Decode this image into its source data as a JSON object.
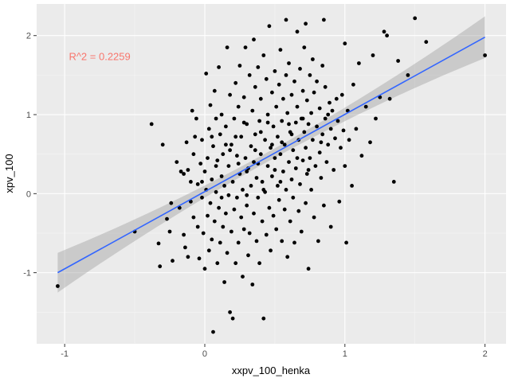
{
  "chart_data": {
    "type": "scatter",
    "title": "",
    "xlabel": "xxpv_100_henka",
    "ylabel": "xpv_100",
    "xlim": [
      -1.2,
      2.15
    ],
    "ylim": [
      -1.9,
      2.4
    ],
    "x_ticks": [
      -1,
      0,
      1,
      2
    ],
    "y_ticks": [
      -1,
      0,
      1,
      2
    ],
    "x_tick_labels": [
      "-1",
      "0",
      "1",
      "2"
    ],
    "y_tick_labels": [
      "-1",
      "0",
      "1",
      "2"
    ],
    "grid": true,
    "legend": "none",
    "annotation": {
      "text": "R^2 = 0.2259",
      "x": -0.97,
      "y": 1.73,
      "color": "#f8766d"
    },
    "fit_line": {
      "x": [
        -1.05,
        2.0
      ],
      "y": [
        -1.0,
        1.98
      ],
      "color": "#3366ff",
      "band_color": "#999999"
    },
    "point_color": "#000000",
    "panel_color": "#ebebeb",
    "series": [
      {
        "points": [
          [
            -1.05,
            -1.17
          ],
          [
            -0.5,
            -0.48
          ],
          [
            -0.38,
            0.88
          ],
          [
            -0.33,
            -0.63
          ],
          [
            -0.32,
            -0.92
          ],
          [
            -0.3,
            0.62
          ],
          [
            -0.27,
            -0.32
          ],
          [
            -0.25,
            -0.48
          ],
          [
            -0.24,
            -0.12
          ],
          [
            -0.23,
            -0.85
          ],
          [
            -0.2,
            0.4
          ],
          [
            -0.18,
            -0.18
          ],
          [
            -0.17,
            0.28
          ],
          [
            -0.15,
            -0.52
          ],
          [
            -0.15,
            0.25
          ],
          [
            -0.14,
            -0.68
          ],
          [
            -0.13,
            0.65
          ],
          [
            -0.12,
            0.3
          ],
          [
            -0.12,
            -0.8
          ],
          [
            -0.1,
            -0.1
          ],
          [
            -0.1,
            0.15
          ],
          [
            -0.09,
            1.05
          ],
          [
            -0.08,
            0.5
          ],
          [
            -0.08,
            -0.3
          ],
          [
            -0.07,
            0.72
          ],
          [
            -0.06,
            0.95
          ],
          [
            -0.05,
            0.12
          ],
          [
            -0.05,
            -0.42
          ],
          [
            -0.04,
            -0.82
          ],
          [
            -0.03,
            0.38
          ],
          [
            -0.02,
            -0.05
          ],
          [
            -0.02,
            0.68
          ],
          [
            -0.01,
            -0.5
          ],
          [
            0.0,
            0.28
          ],
          [
            0.0,
            -0.95
          ],
          [
            0.01,
            0.05
          ],
          [
            0.01,
            1.52
          ],
          [
            0.02,
            0.45
          ],
          [
            0.02,
            -0.28
          ],
          [
            0.03,
            -0.72
          ],
          [
            0.03,
            0.82
          ],
          [
            0.04,
            1.12
          ],
          [
            0.04,
            -0.12
          ],
          [
            0.05,
            0.18
          ],
          [
            0.05,
            -0.58
          ],
          [
            0.06,
            0.6
          ],
          [
            0.06,
            -1.75
          ],
          [
            0.07,
            1.3
          ],
          [
            0.07,
            -0.35
          ],
          [
            0.08,
            0.95
          ],
          [
            0.08,
            0.02
          ],
          [
            0.09,
            -0.88
          ],
          [
            0.09,
            0.42
          ],
          [
            0.1,
            1.6
          ],
          [
            0.1,
            -0.18
          ],
          [
            0.11,
            0.75
          ],
          [
            0.11,
            -0.62
          ],
          [
            0.12,
            0.22
          ],
          [
            0.12,
            1.0
          ],
          [
            0.13,
            -0.42
          ],
          [
            0.13,
            0.5
          ],
          [
            0.14,
            -1.12
          ],
          [
            0.14,
            0.1
          ],
          [
            0.15,
            0.85
          ],
          [
            0.15,
            -0.25
          ],
          [
            0.16,
            1.85
          ],
          [
            0.16,
            -0.75
          ],
          [
            0.17,
            0.35
          ],
          [
            0.17,
            -0.02
          ],
          [
            0.18,
            1.25
          ],
          [
            0.18,
            -1.5
          ],
          [
            0.19,
            0.62
          ],
          [
            0.19,
            -0.48
          ],
          [
            0.2,
            0.15
          ],
          [
            0.2,
            -1.58
          ],
          [
            0.21,
            0.95
          ],
          [
            0.21,
            -0.2
          ],
          [
            0.22,
            1.4
          ],
          [
            0.22,
            -0.88
          ],
          [
            0.23,
            0.48
          ],
          [
            0.23,
            -0.05
          ],
          [
            0.24,
            1.1
          ],
          [
            0.24,
            -0.62
          ],
          [
            0.25,
            0.25
          ],
          [
            0.25,
            1.62
          ],
          [
            0.26,
            -0.3
          ],
          [
            0.26,
            0.72
          ],
          [
            0.27,
            -1.05
          ],
          [
            0.27,
            0.05
          ],
          [
            0.28,
            1.22
          ],
          [
            0.28,
            -0.45
          ],
          [
            0.29,
            0.45
          ],
          [
            0.29,
            1.85
          ],
          [
            0.3,
            -0.15
          ],
          [
            0.3,
            0.88
          ],
          [
            0.31,
            -0.78
          ],
          [
            0.31,
            0.32
          ],
          [
            0.32,
            1.5
          ],
          [
            0.32,
            -0.5
          ],
          [
            0.33,
            0.6
          ],
          [
            0.33,
            0.1
          ],
          [
            0.34,
            1.05
          ],
          [
            0.34,
            -1.15
          ],
          [
            0.35,
            0.4
          ],
          [
            0.35,
            -0.25
          ],
          [
            0.36,
            1.35
          ],
          [
            0.36,
            0.75
          ],
          [
            0.37,
            -0.6
          ],
          [
            0.37,
            0.2
          ],
          [
            0.38,
            1.6
          ],
          [
            0.38,
            -0.05
          ],
          [
            0.39,
            0.92
          ],
          [
            0.39,
            -0.88
          ],
          [
            0.4,
            0.5
          ],
          [
            0.4,
            1.2
          ],
          [
            0.41,
            -0.35
          ],
          [
            0.41,
            0.15
          ],
          [
            0.42,
            1.75
          ],
          [
            0.42,
            -1.58
          ],
          [
            0.43,
            0.68
          ],
          [
            0.43,
            0.02
          ],
          [
            0.44,
            1.45
          ],
          [
            0.44,
            -0.52
          ],
          [
            0.45,
            0.35
          ],
          [
            0.45,
            1.0
          ],
          [
            0.46,
            -0.18
          ],
          [
            0.46,
            2.12
          ],
          [
            0.47,
            0.58
          ],
          [
            0.47,
            -0.72
          ],
          [
            0.48,
            1.28
          ],
          [
            0.48,
            0.22
          ],
          [
            0.49,
            0.85
          ],
          [
            0.49,
            -0.28
          ],
          [
            0.5,
            1.55
          ],
          [
            0.5,
            0.45
          ],
          [
            0.51,
            -0.45
          ],
          [
            0.51,
            1.1
          ],
          [
            0.52,
            0.1
          ],
          [
            0.52,
            0.72
          ],
          [
            0.53,
            1.38
          ],
          [
            0.53,
            -0.08
          ],
          [
            0.54,
            0.5
          ],
          [
            0.54,
            1.82
          ],
          [
            0.55,
            -0.6
          ],
          [
            0.55,
            0.92
          ],
          [
            0.56,
            0.28
          ],
          [
            0.56,
            1.2
          ],
          [
            0.57,
            -0.2
          ],
          [
            0.57,
            0.62
          ],
          [
            0.58,
            1.5
          ],
          [
            0.58,
            0.05
          ],
          [
            0.59,
            1.02
          ],
          [
            0.59,
            -0.8
          ],
          [
            0.6,
            0.4
          ],
          [
            0.6,
            1.65
          ],
          [
            0.61,
            -0.35
          ],
          [
            0.61,
            0.78
          ],
          [
            0.62,
            1.25
          ],
          [
            0.62,
            0.18
          ],
          [
            0.63,
            -0.05
          ],
          [
            0.63,
            0.55
          ],
          [
            0.64,
            1.42
          ],
          [
            0.64,
            -0.62
          ],
          [
            0.65,
            0.9
          ],
          [
            0.65,
            0.32
          ],
          [
            0.66,
            2.05
          ],
          [
            0.66,
            1.1
          ],
          [
            0.67,
            -0.22
          ],
          [
            0.67,
            0.68
          ],
          [
            0.68,
            1.58
          ],
          [
            0.68,
            0.12
          ],
          [
            0.69,
            0.95
          ],
          [
            0.69,
            -0.48
          ],
          [
            0.7,
            0.42
          ],
          [
            0.7,
            1.3
          ],
          [
            0.71,
            0.78
          ],
          [
            0.71,
            1.85
          ],
          [
            0.72,
            -0.12
          ],
          [
            0.72,
            0.58
          ],
          [
            0.73,
            1.18
          ],
          [
            0.73,
            0.25
          ],
          [
            0.74,
            0.88
          ],
          [
            0.74,
            -0.95
          ],
          [
            0.75,
            1.5
          ],
          [
            0.75,
            0.45
          ],
          [
            0.76,
            0.05
          ],
          [
            0.76,
            1.02
          ],
          [
            0.77,
            1.7
          ],
          [
            0.77,
            0.68
          ],
          [
            0.78,
            -0.3
          ],
          [
            0.78,
            1.28
          ],
          [
            0.79,
            0.35
          ],
          [
            0.8,
            0.85
          ],
          [
            0.8,
            1.42
          ],
          [
            0.81,
            -0.6
          ],
          [
            0.82,
            0.52
          ],
          [
            0.82,
            1.08
          ],
          [
            0.83,
            0.2
          ],
          [
            0.84,
            1.62
          ],
          [
            0.84,
            0.75
          ],
          [
            0.85,
            -0.15
          ],
          [
            0.86,
            0.95
          ],
          [
            0.86,
            1.35
          ],
          [
            0.87,
            0.4
          ],
          [
            0.88,
            1.0
          ],
          [
            0.88,
            0.62
          ],
          [
            0.89,
            1.15
          ],
          [
            0.9,
            -0.42
          ],
          [
            0.9,
            0.82
          ],
          [
            0.91,
            1.05
          ],
          [
            0.92,
            0.3
          ],
          [
            0.93,
            0.7
          ],
          [
            0.94,
            1.2
          ],
          [
            0.95,
            0.92
          ],
          [
            0.96,
            -0.1
          ],
          [
            0.97,
            0.58
          ],
          [
            0.98,
            1.25
          ],
          [
            0.99,
            0.8
          ],
          [
            1.0,
            0.35
          ],
          [
            1.0,
            1.9
          ],
          [
            1.01,
            -0.62
          ],
          [
            1.02,
            1.05
          ],
          [
            1.03,
            0.68
          ],
          [
            1.05,
            0.1
          ],
          [
            1.06,
            1.38
          ],
          [
            1.08,
            0.82
          ],
          [
            1.1,
            1.65
          ],
          [
            1.12,
            0.48
          ],
          [
            1.15,
            1.1
          ],
          [
            1.18,
            0.65
          ],
          [
            1.2,
            1.75
          ],
          [
            1.22,
            0.95
          ],
          [
            1.25,
            1.22
          ],
          [
            1.28,
            2.05
          ],
          [
            1.3,
            2.0
          ],
          [
            1.32,
            1.2
          ],
          [
            1.35,
            0.15
          ],
          [
            1.38,
            1.68
          ],
          [
            1.45,
            1.5
          ],
          [
            1.5,
            2.22
          ],
          [
            1.58,
            1.92
          ],
          [
            2.0,
            1.75
          ],
          [
            0.85,
            2.2
          ],
          [
            0.72,
            2.15
          ],
          [
            0.58,
            2.2
          ],
          [
            0.35,
            1.95
          ],
          [
            0.45,
            0.9
          ],
          [
            0.55,
            0.65
          ],
          [
            0.3,
            0.28
          ],
          [
            0.22,
            0.72
          ],
          [
            0.4,
            0.78
          ],
          [
            0.6,
            0.88
          ],
          [
            0.7,
            0.95
          ],
          [
            0.5,
            0.3
          ],
          [
            0.38,
            0.38
          ],
          [
            0.28,
            0.9
          ],
          [
            0.18,
            0.55
          ],
          [
            0.05,
            0.72
          ],
          [
            -0.02,
            0.15
          ],
          [
            0.12,
            -0.05
          ],
          [
            0.24,
            0.38
          ],
          [
            0.36,
            0.55
          ],
          [
            0.48,
            0.62
          ],
          [
            0.62,
            0.75
          ],
          [
            0.74,
            0.3
          ],
          [
            0.83,
            0.65
          ],
          [
            0.66,
            0.45
          ],
          [
            0.54,
            0.15
          ],
          [
            0.42,
            0.05
          ],
          [
            0.3,
            -0.02
          ],
          [
            0.15,
            0.62
          ],
          [
            0.08,
            0.35
          ]
        ]
      }
    ]
  }
}
